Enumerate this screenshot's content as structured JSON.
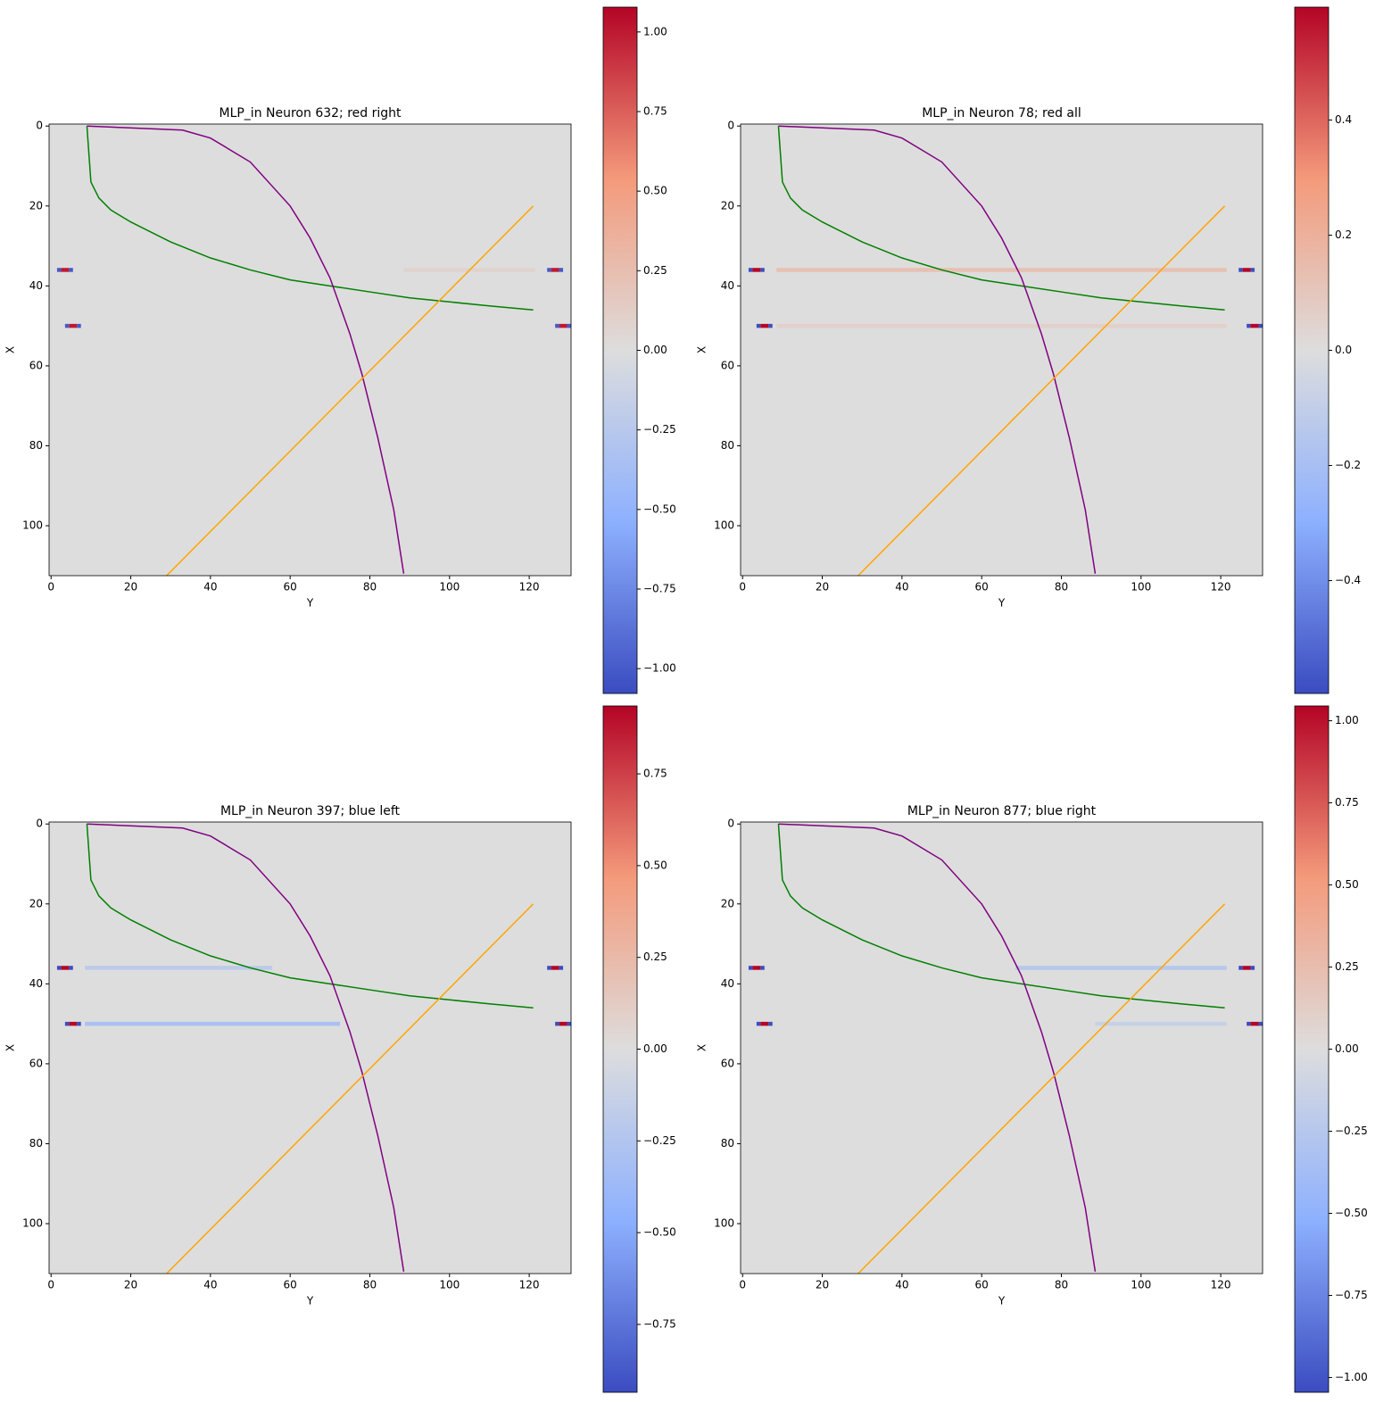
{
  "chart_data": [
    {
      "type": "heatmap",
      "title": "MLP_in Neuron 632; red right",
      "x_label": "Y",
      "y_label": "X",
      "colormap": "coolwarm",
      "xlim": [
        -0.5,
        130.5
      ],
      "ylim": [
        112.5,
        -0.5
      ],
      "xticks": [
        0,
        20,
        40,
        60,
        80,
        100,
        120
      ],
      "yticks": [
        0,
        20,
        40,
        60,
        80,
        100
      ],
      "clim": [
        -1.078,
        1.078
      ],
      "cticks": [
        {
          "value": -1,
          "label": "−1.00"
        },
        {
          "value": -0.75,
          "label": "−0.75"
        },
        {
          "value": -0.5,
          "label": "−0.50"
        },
        {
          "value": -0.25,
          "label": "−0.25"
        },
        {
          "value": 0,
          "label": "0.00"
        },
        0.25,
        {
          "value": 0.5,
          "label": "0.50"
        },
        0.75,
        {
          "value": 1,
          "label": "1.00"
        }
      ],
      "cells": [
        {
          "row": 36,
          "cols": [
            88.5,
            121.5
          ],
          "value": 0.08
        },
        {
          "row": 36,
          "cols": [
            1.5,
            2.5
          ],
          "value": -1.0
        },
        {
          "row": 36,
          "cols": [
            2.5,
            4.5
          ],
          "value": 1.0
        },
        {
          "row": 36,
          "cols": [
            4.5,
            5.5
          ],
          "value": -1.0
        },
        {
          "row": 36,
          "cols": [
            124.5,
            125.5
          ],
          "value": -1.0
        },
        {
          "row": 36,
          "cols": [
            125.5,
            127.5
          ],
          "value": 1.0
        },
        {
          "row": 36,
          "cols": [
            127.5,
            128.5
          ],
          "value": -1.0
        },
        {
          "row": 50,
          "cols": [
            3.5,
            4.5
          ],
          "value": -1.0
        },
        {
          "row": 50,
          "cols": [
            4.5,
            6.5
          ],
          "value": 1.0
        },
        {
          "row": 50,
          "cols": [
            6.5,
            7.5
          ],
          "value": -1.0
        },
        {
          "row": 50,
          "cols": [
            126.5,
            127.5
          ],
          "value": -1.0
        },
        {
          "row": 50,
          "cols": [
            127.5,
            129.5
          ],
          "value": 1.0
        },
        {
          "row": 50,
          "cols": [
            129.5,
            130.5
          ],
          "value": -1.0
        }
      ],
      "lines": [
        {
          "color": "#008000",
          "x": [
            9,
            10,
            12,
            15,
            20,
            30,
            40,
            50,
            60,
            70,
            80,
            90,
            100,
            110,
            121
          ],
          "y": [
            0,
            14,
            18,
            21,
            24,
            29,
            33,
            36,
            38.5,
            40,
            41.5,
            43,
            44,
            45,
            46
          ]
        },
        {
          "color": "#800080",
          "x": [
            9,
            33,
            40,
            50,
            60,
            65,
            70,
            75,
            78,
            82,
            86,
            88.5
          ],
          "y": [
            0,
            1,
            3,
            9,
            20,
            28,
            38,
            52,
            62,
            78,
            96,
            112
          ]
        },
        {
          "color": "#ffa500",
          "x": [
            29,
            121
          ],
          "y": [
            112.5,
            20
          ]
        }
      ]
    },
    {
      "type": "heatmap",
      "title": "MLP_in Neuron 78; red all",
      "x_label": "Y",
      "y_label": "X",
      "colormap": "coolwarm",
      "xlim": [
        -0.5,
        130.5
      ],
      "ylim": [
        112.5,
        -0.5
      ],
      "xticks": [
        0,
        20,
        40,
        60,
        80,
        100,
        120
      ],
      "yticks": [
        0,
        20,
        40,
        60,
        80,
        100
      ],
      "clim": [
        -0.596,
        0.596
      ],
      "cticks": [
        {
          "value": -0.4,
          "label": "−0.4"
        },
        {
          "value": -0.2,
          "label": "−0.2"
        },
        {
          "value": 0,
          "label": "0.0"
        },
        0.2,
        0.4
      ],
      "cells": [
        {
          "row": 36,
          "cols": [
            8.5,
            121.5
          ],
          "value": 0.13
        },
        {
          "row": 50,
          "cols": [
            8.5,
            121.5
          ],
          "value": 0.06
        },
        {
          "row": 36,
          "cols": [
            1.5,
            2.5
          ],
          "value": -0.59
        },
        {
          "row": 36,
          "cols": [
            2.5,
            4.5
          ],
          "value": 0.59
        },
        {
          "row": 36,
          "cols": [
            4.5,
            5.5
          ],
          "value": -0.59
        },
        {
          "row": 36,
          "cols": [
            124.5,
            125.5
          ],
          "value": -0.59
        },
        {
          "row": 36,
          "cols": [
            125.5,
            127.5
          ],
          "value": 0.59
        },
        {
          "row": 36,
          "cols": [
            127.5,
            128.5
          ],
          "value": -0.59
        },
        {
          "row": 50,
          "cols": [
            3.5,
            4.5
          ],
          "value": -0.59
        },
        {
          "row": 50,
          "cols": [
            4.5,
            6.5
          ],
          "value": 0.59
        },
        {
          "row": 50,
          "cols": [
            6.5,
            7.5
          ],
          "value": -0.59
        },
        {
          "row": 50,
          "cols": [
            126.5,
            127.5
          ],
          "value": -0.59
        },
        {
          "row": 50,
          "cols": [
            127.5,
            129.5
          ],
          "value": 0.59
        },
        {
          "row": 50,
          "cols": [
            129.5,
            130.5
          ],
          "value": -0.59
        }
      ],
      "lines": [
        {
          "color": "#008000",
          "x": [
            9,
            10,
            12,
            15,
            20,
            30,
            40,
            50,
            60,
            70,
            80,
            90,
            100,
            110,
            121
          ],
          "y": [
            0,
            14,
            18,
            21,
            24,
            29,
            33,
            36,
            38.5,
            40,
            41.5,
            43,
            44,
            45,
            46
          ]
        },
        {
          "color": "#800080",
          "x": [
            9,
            33,
            40,
            50,
            60,
            65,
            70,
            75,
            78,
            82,
            86,
            88.5
          ],
          "y": [
            0,
            1,
            3,
            9,
            20,
            28,
            38,
            52,
            62,
            78,
            96,
            112
          ]
        },
        {
          "color": "#ffa500",
          "x": [
            29,
            121
          ],
          "y": [
            112.5,
            20
          ]
        }
      ]
    },
    {
      "type": "heatmap",
      "title": "MLP_in Neuron 397; blue left",
      "x_label": "Y",
      "y_label": "X",
      "colormap": "coolwarm",
      "xlim": [
        -0.5,
        130.5
      ],
      "ylim": [
        112.5,
        -0.5
      ],
      "xticks": [
        0,
        20,
        40,
        60,
        80,
        100,
        120
      ],
      "yticks": [
        0,
        20,
        40,
        60,
        80,
        100
      ],
      "clim": [
        -0.935,
        0.935
      ],
      "cticks": [
        {
          "value": -0.75,
          "label": "−0.75"
        },
        {
          "value": -0.5,
          "label": "−0.50"
        },
        {
          "value": -0.25,
          "label": "−0.25"
        },
        {
          "value": 0,
          "label": "0.00"
        },
        0.25,
        {
          "value": 0.5,
          "label": "0.50"
        },
        0.75
      ],
      "cells": [
        {
          "row": 36,
          "cols": [
            8.5,
            55.5
          ],
          "value": -0.2
        },
        {
          "row": 50,
          "cols": [
            8.5,
            72.5
          ],
          "value": -0.3
        },
        {
          "row": 36,
          "cols": [
            1.5,
            2.5
          ],
          "value": -0.93
        },
        {
          "row": 36,
          "cols": [
            2.5,
            4.5
          ],
          "value": 0.93
        },
        {
          "row": 36,
          "cols": [
            4.5,
            5.5
          ],
          "value": -0.93
        },
        {
          "row": 36,
          "cols": [
            124.5,
            125.5
          ],
          "value": -0.93
        },
        {
          "row": 36,
          "cols": [
            125.5,
            127.5
          ],
          "value": 0.93
        },
        {
          "row": 36,
          "cols": [
            127.5,
            128.5
          ],
          "value": -0.93
        },
        {
          "row": 50,
          "cols": [
            3.5,
            4.5
          ],
          "value": -0.93
        },
        {
          "row": 50,
          "cols": [
            4.5,
            6.5
          ],
          "value": 0.93
        },
        {
          "row": 50,
          "cols": [
            6.5,
            7.5
          ],
          "value": -0.93
        },
        {
          "row": 50,
          "cols": [
            126.5,
            127.5
          ],
          "value": -0.93
        },
        {
          "row": 50,
          "cols": [
            127.5,
            129.5
          ],
          "value": 0.93
        },
        {
          "row": 50,
          "cols": [
            129.5,
            130.5
          ],
          "value": -0.93
        }
      ],
      "lines": [
        {
          "color": "#008000",
          "x": [
            9,
            10,
            12,
            15,
            20,
            30,
            40,
            50,
            60,
            70,
            80,
            90,
            100,
            110,
            121
          ],
          "y": [
            0,
            14,
            18,
            21,
            24,
            29,
            33,
            36,
            38.5,
            40,
            41.5,
            43,
            44,
            45,
            46
          ]
        },
        {
          "color": "#800080",
          "x": [
            9,
            33,
            40,
            50,
            60,
            65,
            70,
            75,
            78,
            82,
            86,
            88.5
          ],
          "y": [
            0,
            1,
            3,
            9,
            20,
            28,
            38,
            52,
            62,
            78,
            96,
            112
          ]
        },
        {
          "color": "#ffa500",
          "x": [
            29,
            121
          ],
          "y": [
            112.5,
            20
          ]
        }
      ]
    },
    {
      "type": "heatmap",
      "title": "MLP_in Neuron 877; blue right",
      "x_label": "Y",
      "y_label": "X",
      "colormap": "coolwarm",
      "xlim": [
        -0.5,
        130.5
      ],
      "ylim": [
        112.5,
        -0.5
      ],
      "xticks": [
        0,
        20,
        40,
        60,
        80,
        100,
        120
      ],
      "yticks": [
        0,
        20,
        40,
        60,
        80,
        100
      ],
      "clim": [
        -1.045,
        1.045
      ],
      "cticks": [
        {
          "value": -1,
          "label": "−1.00"
        },
        {
          "value": -0.75,
          "label": "−0.75"
        },
        {
          "value": -0.5,
          "label": "−0.50"
        },
        {
          "value": -0.25,
          "label": "−0.25"
        },
        {
          "value": 0,
          "label": "0.00"
        },
        0.25,
        {
          "value": 0.5,
          "label": "0.50"
        },
        0.75,
        {
          "value": 1,
          "label": "1.00"
        }
      ],
      "cells": [
        {
          "row": 36,
          "cols": [
            68.5,
            121.5
          ],
          "value": -0.25
        },
        {
          "row": 50,
          "cols": [
            88.5,
            121.5
          ],
          "value": -0.15
        },
        {
          "row": 36,
          "cols": [
            1.5,
            2.5
          ],
          "value": -1.04
        },
        {
          "row": 36,
          "cols": [
            2.5,
            4.5
          ],
          "value": 1.04
        },
        {
          "row": 36,
          "cols": [
            4.5,
            5.5
          ],
          "value": -1.04
        },
        {
          "row": 36,
          "cols": [
            124.5,
            125.5
          ],
          "value": -1.04
        },
        {
          "row": 36,
          "cols": [
            125.5,
            127.5
          ],
          "value": 1.04
        },
        {
          "row": 36,
          "cols": [
            127.5,
            128.5
          ],
          "value": -1.04
        },
        {
          "row": 50,
          "cols": [
            3.5,
            4.5
          ],
          "value": -1.04
        },
        {
          "row": 50,
          "cols": [
            4.5,
            6.5
          ],
          "value": 1.04
        },
        {
          "row": 50,
          "cols": [
            6.5,
            7.5
          ],
          "value": -1.04
        },
        {
          "row": 50,
          "cols": [
            126.5,
            127.5
          ],
          "value": -1.04
        },
        {
          "row": 50,
          "cols": [
            127.5,
            129.5
          ],
          "value": 1.04
        },
        {
          "row": 50,
          "cols": [
            129.5,
            130.5
          ],
          "value": -1.04
        }
      ],
      "lines": [
        {
          "color": "#008000",
          "x": [
            9,
            10,
            12,
            15,
            20,
            30,
            40,
            50,
            60,
            70,
            80,
            90,
            100,
            110,
            121
          ],
          "y": [
            0,
            14,
            18,
            21,
            24,
            29,
            33,
            36,
            38.5,
            40,
            41.5,
            43,
            44,
            45,
            46
          ]
        },
        {
          "color": "#800080",
          "x": [
            9,
            33,
            40,
            50,
            60,
            65,
            70,
            75,
            78,
            82,
            86,
            88.5
          ],
          "y": [
            0,
            1,
            3,
            9,
            20,
            28,
            38,
            52,
            62,
            78,
            96,
            112
          ]
        },
        {
          "color": "#ffa500",
          "x": [
            29,
            121
          ],
          "y": [
            112.5,
            20
          ]
        }
      ]
    }
  ]
}
